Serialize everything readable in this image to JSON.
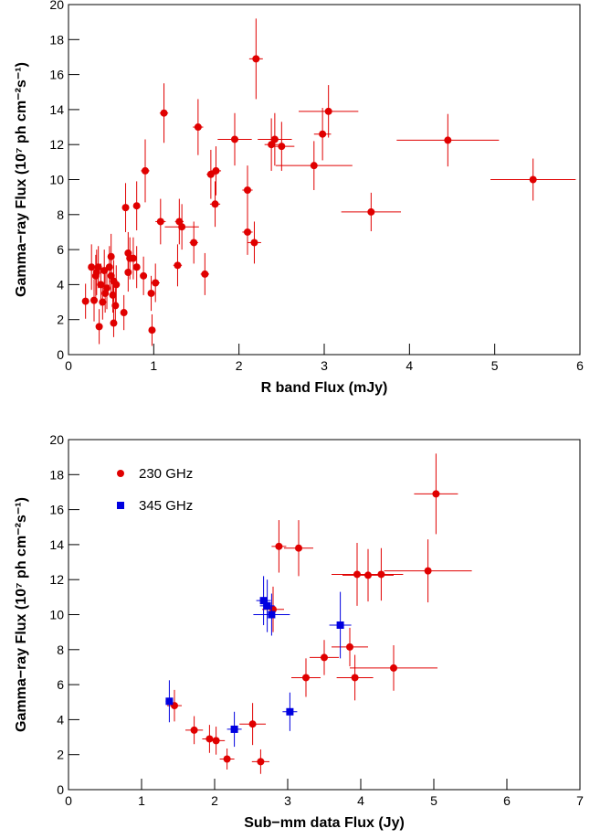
{
  "charts": [
    {
      "type": "scatter",
      "xlabel": "R band Flux (mJy)",
      "ylabel": "Gamma−ray Flux (10⁷ ph cm⁻²s⁻¹)",
      "xlim": [
        0,
        6
      ],
      "ylim": [
        0,
        20
      ],
      "xticks": [
        0,
        1,
        2,
        3,
        4,
        5,
        6
      ],
      "yticks": [
        0,
        2,
        4,
        6,
        8,
        10,
        12,
        14,
        16,
        18,
        20
      ],
      "series": [
        {
          "color": "#e00000",
          "marker": "circle",
          "x": [
            0.2,
            0.27,
            0.3,
            0.32,
            0.33,
            0.35,
            0.36,
            0.38,
            0.4,
            0.42,
            0.43,
            0.45,
            0.48,
            0.5,
            0.5,
            0.52,
            0.53,
            0.53,
            0.55,
            0.56,
            0.65,
            0.67,
            0.7,
            0.7,
            0.72,
            0.76,
            0.8,
            0.8,
            0.88,
            0.9,
            0.97,
            0.98,
            1.02,
            1.08,
            1.12,
            1.28,
            1.3,
            1.33,
            1.47,
            1.52,
            1.6,
            1.67,
            1.72,
            1.73,
            1.95,
            2.1,
            2.1,
            2.18,
            2.2,
            2.38,
            2.42,
            2.5,
            2.88,
            2.98,
            3.05,
            3.55,
            4.45,
            5.45
          ],
          "values": [
            3.05,
            5.0,
            3.1,
            4.5,
            4.7,
            5.0,
            1.6,
            4.0,
            3.0,
            4.8,
            3.5,
            3.8,
            5.0,
            5.6,
            4.5,
            3.4,
            4.2,
            1.8,
            2.8,
            4.0,
            2.4,
            8.4,
            5.8,
            4.7,
            5.5,
            5.5,
            8.5,
            5.0,
            4.5,
            10.5,
            3.5,
            1.4,
            4.1,
            7.6,
            13.8,
            5.1,
            7.6,
            7.3,
            6.4,
            13.0,
            4.6,
            10.3,
            8.6,
            10.5,
            12.3,
            7.0,
            9.4,
            6.4,
            16.9,
            12.0,
            12.3,
            11.9,
            10.8,
            12.6,
            13.9,
            8.15,
            12.25,
            10.0
          ],
          "xerr": [
            0.03,
            0.03,
            0.03,
            0.03,
            0.03,
            0.03,
            0.03,
            0.03,
            0.03,
            0.03,
            0.03,
            0.03,
            0.03,
            0.03,
            0.03,
            0.03,
            0.03,
            0.03,
            0.03,
            0.03,
            0.03,
            0.03,
            0.03,
            0.03,
            0.03,
            0.03,
            0.04,
            0.04,
            0.04,
            0.05,
            0.04,
            0.04,
            0.05,
            0.06,
            0.05,
            0.05,
            0.05,
            0.2,
            0.05,
            0.06,
            0.05,
            0.05,
            0.06,
            0.06,
            0.2,
            0.06,
            0.06,
            0.08,
            0.08,
            0.08,
            0.2,
            0.15,
            0.45,
            0.1,
            0.35,
            0.35,
            0.6,
            0.5
          ],
          "yerr": [
            1.0,
            1.3,
            1.2,
            1.2,
            1.3,
            1.2,
            1.0,
            1.2,
            1.0,
            1.2,
            1.1,
            1.2,
            1.2,
            1.3,
            1.2,
            1.0,
            1.2,
            0.8,
            1.0,
            1.1,
            1.0,
            1.4,
            1.2,
            1.1,
            1.2,
            1.2,
            1.4,
            1.2,
            1.1,
            1.8,
            1.0,
            0.9,
            1.1,
            1.3,
            1.7,
            1.2,
            1.3,
            1.3,
            1.2,
            1.6,
            1.2,
            1.4,
            1.3,
            1.4,
            1.5,
            1.3,
            1.4,
            1.2,
            2.3,
            1.5,
            1.5,
            1.4,
            1.4,
            1.5,
            1.5,
            1.1,
            1.5,
            1.2
          ]
        }
      ]
    },
    {
      "type": "scatter",
      "xlabel": "Sub−mm data Flux (Jy)",
      "ylabel": "Gamma−ray Flux (10⁷ ph cm⁻²s⁻¹)",
      "xlim": [
        0,
        7
      ],
      "ylim": [
        0,
        20
      ],
      "xticks": [
        0,
        1,
        2,
        3,
        4,
        5,
        6,
        7
      ],
      "yticks": [
        0,
        2,
        4,
        6,
        8,
        10,
        12,
        14,
        16,
        18,
        20
      ],
      "legend": "upper left",
      "series": [
        {
          "name": "230 GHz",
          "color": "#e00000",
          "marker": "circle",
          "x": [
            1.45,
            1.72,
            1.93,
            2.02,
            2.17,
            2.52,
            2.63,
            2.88,
            2.8,
            3.15,
            3.25,
            3.5,
            3.85,
            3.92,
            3.95,
            4.1,
            4.28,
            4.45,
            4.92,
            5.03
          ],
          "values": [
            4.8,
            3.4,
            2.9,
            2.8,
            1.75,
            3.75,
            1.6,
            13.9,
            10.3,
            13.8,
            6.4,
            7.55,
            8.15,
            6.4,
            12.3,
            12.25,
            12.3,
            6.95,
            12.5,
            16.9
          ],
          "xerr": [
            0.1,
            0.12,
            0.1,
            0.12,
            0.1,
            0.18,
            0.12,
            0.1,
            0.15,
            0.2,
            0.2,
            0.2,
            0.25,
            0.25,
            0.35,
            0.35,
            0.3,
            0.6,
            0.6,
            0.3
          ],
          "yerr": [
            0.9,
            0.8,
            0.8,
            0.8,
            0.6,
            1.2,
            0.7,
            1.5,
            1.3,
            1.6,
            1.1,
            1.0,
            1.1,
            1.3,
            1.8,
            1.5,
            1.5,
            1.3,
            1.8,
            2.3
          ]
        },
        {
          "name": "345 GHz",
          "color": "#0000e0",
          "marker": "square",
          "x": [
            1.38,
            2.27,
            2.67,
            2.72,
            2.78,
            3.03,
            3.72
          ],
          "values": [
            5.05,
            3.45,
            10.8,
            10.5,
            10.0,
            4.45,
            9.4
          ],
          "xerr": [
            0.05,
            0.1,
            0.1,
            0.1,
            0.25,
            0.1,
            0.15
          ],
          "yerr": [
            1.2,
            1.0,
            1.4,
            1.5,
            1.2,
            1.1,
            1.9
          ]
        }
      ]
    }
  ]
}
